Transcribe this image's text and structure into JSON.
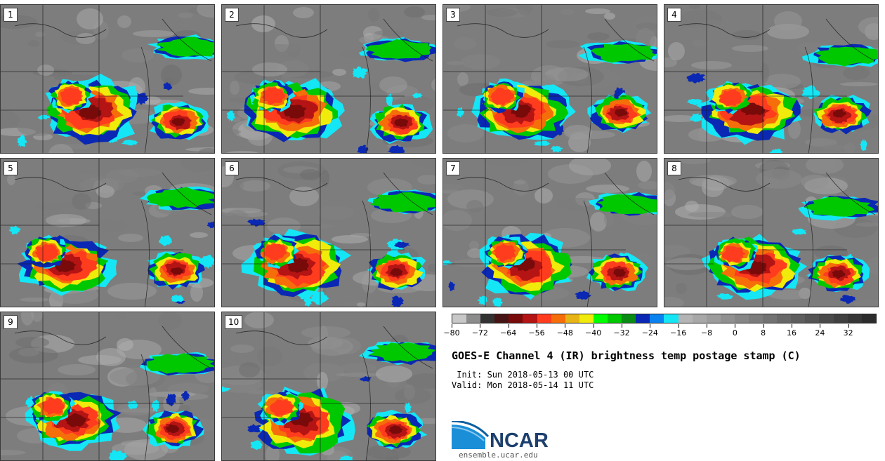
{
  "panels": [
    {
      "label": "1"
    },
    {
      "label": "2"
    },
    {
      "label": "3"
    },
    {
      "label": "4"
    },
    {
      "label": "5"
    },
    {
      "label": "6"
    },
    {
      "label": "7"
    },
    {
      "label": "8"
    },
    {
      "label": "9"
    },
    {
      "label": "10"
    }
  ],
  "colorbar": {
    "min": -80,
    "max": 40,
    "step": 4,
    "tick_labels": [
      "−80",
      "−72",
      "−64",
      "−56",
      "−48",
      "−40",
      "−32",
      "−24",
      "−16",
      "−8",
      "0",
      "8",
      "16",
      "24",
      "32"
    ],
    "tick_values": [
      -80,
      -72,
      -64,
      -56,
      -48,
      -40,
      -32,
      -24,
      -16,
      -8,
      0,
      8,
      16,
      24,
      32
    ],
    "colors": [
      "#c8c8c8",
      "#8c8c8c",
      "#323232",
      "#461414",
      "#780a0a",
      "#b41414",
      "#ff3c1e",
      "#f56e0a",
      "#e6b414",
      "#f0eb0a",
      "#00ff00",
      "#00c800",
      "#0a8c14",
      "#0a28b4",
      "#0a82f0",
      "#14e6f5",
      "#b4b4b4",
      "#a8a8a8",
      "#9c9c9c",
      "#909090",
      "#868686",
      "#7c7c7c",
      "#727272",
      "#686868",
      "#5e5e5e",
      "#545454",
      "#4a4a4a",
      "#404040",
      "#363636",
      "#2c2c2c"
    ]
  },
  "title": "GOES-E Channel 4 (IR) brightness temp postage stamp (C)",
  "init": " Init: Sun 2018-05-13 00 UTC",
  "valid": "Valid: Mon 2018-05-14 11 UTC",
  "logo": {
    "text": "NCAR",
    "url_text": "ensemble.ucar.edu"
  }
}
